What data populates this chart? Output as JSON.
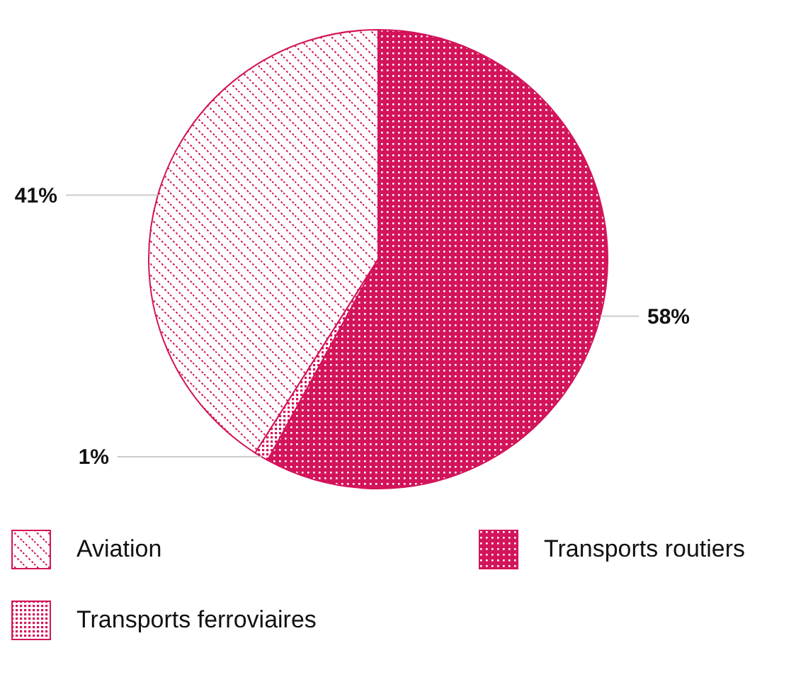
{
  "chart_data": {
    "type": "pie",
    "categories": [
      "Aviation",
      "Transports ferroviaires",
      "Transports routiers"
    ],
    "values": [
      41,
      1,
      58
    ],
    "value_labels": [
      "41%",
      "1%",
      "58%"
    ],
    "colors": [
      "#d3145a",
      "#d3145a",
      "#d3145a"
    ],
    "legend": "bottom"
  }
}
